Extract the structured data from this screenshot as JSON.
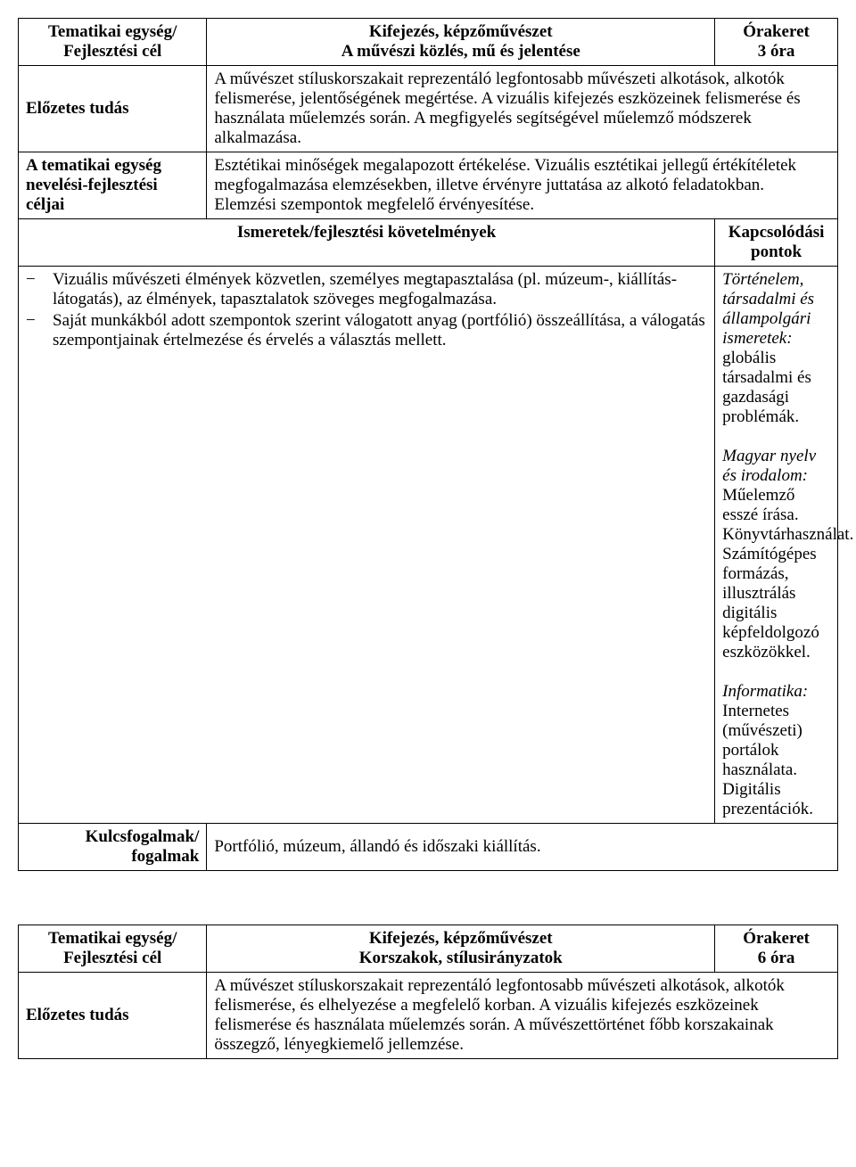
{
  "table1": {
    "row1": {
      "c1_l1": "Tematikai egység/",
      "c1_l2": "Fejlesztési cél",
      "c2_l1": "Kifejezés, képzőművészet",
      "c2_l2": "A művészi közlés, mű és jelentése",
      "c3_l1": "Órakeret",
      "c3_l2": "3 óra"
    },
    "row2": {
      "c1": "Előzetes tudás",
      "c2": "A művészet stíluskorszakait reprezentáló legfontosabb művészeti alkotások, alkotók felismerése, jelentőségének megértése. A vizuális kifejezés eszközeinek felismerése és használata műelemzés során. A megfigyelés segítségével műelemző módszerek alkalmazása."
    },
    "row3": {
      "c1": "A tematikai egység nevelési-fejlesztési céljai",
      "c2": "Esztétikai minőségek megalapozott értékelése. Vizuális esztétikai jellegű értékítéletek megfogalmazása elemzésekben, illetve érvényre juttatása az alkotó feladatokban. Elemzési szempontok megfelelő érvényesítése."
    },
    "row4": {
      "c1": "Ismeretek/fejlesztési követelmények",
      "c2": "Kapcsolódási pontok"
    },
    "row5": {
      "li1": "Vizuális művészeti élmények közvetlen, személyes megtapasztalása (pl. múzeum-, kiállítás-látogatás), az élmények, tapasztalatok szöveges megfogalmazása.",
      "li2": "Saját munkákból adott szempontok szerint válogatott anyag (portfólió) összeállítása, a válogatás szempontjainak értelmezése és érvelés a választás mellett.",
      "p1_it": "Történelem, társadalmi és állampolgári ismeretek:",
      "p1_tx": " globális társadalmi és gazdasági problémák.",
      "p2_it": "Magyar nyelv és irodalom:",
      "p2_tx": " Műelemző esszé írása. Könyvtárhasználat. Számítógépes formázás, illusztrálás digitális képfeldolgozó eszközökkel.",
      "p3_it": "Informatika:",
      "p3_tx": " Internetes (művészeti) portálok használata. Digitális prezentációk."
    },
    "row6": {
      "c1_l1": "Kulcsfogalmak/",
      "c1_l2": "fogalmak",
      "c2": "Portfólió, múzeum, állandó és időszaki kiállítás."
    }
  },
  "table2": {
    "row1": {
      "c1_l1": "Tematikai egység/",
      "c1_l2": "Fejlesztési cél",
      "c2_l1": "Kifejezés, képzőművészet",
      "c2_l2": "Korszakok, stílusirányzatok",
      "c3_l1": "Órakeret",
      "c3_l2": "6 óra"
    },
    "row2": {
      "c1": "Előzetes tudás",
      "c2": "A művészet stíluskorszakait reprezentáló legfontosabb művészeti alkotások, alkotók felismerése, és elhelyezése a megfelelő korban. A vizuális kifejezés eszközeinek felismerése és használata műelemzés során. A művészettörténet főbb korszakainak összegző, lényegkiemelő jellemzése."
    }
  }
}
